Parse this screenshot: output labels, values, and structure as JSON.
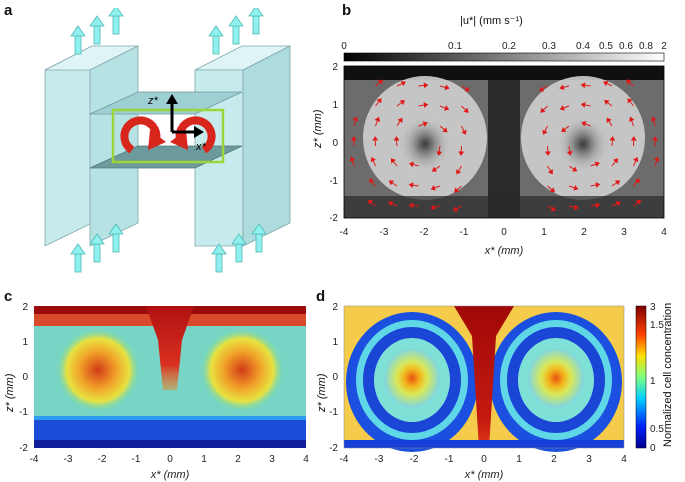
{
  "figure": {
    "panels": {
      "a": {
        "letter": "a",
        "axis_z": "z*",
        "axis_x": "x*"
      },
      "b": {
        "letter": "b",
        "colorbar_title": "|u*| (mm s⁻¹)",
        "colorbar_ticks": [
          "0",
          "0.1",
          "0.2",
          "0.3",
          "0.4",
          "0.5",
          "0.6",
          "0.8",
          "2"
        ],
        "xlabel": "x* (mm)",
        "ylabel": "z* (mm)",
        "xticks": [
          "-4",
          "-3",
          "-2",
          "-1",
          "0",
          "1",
          "2",
          "3",
          "4"
        ],
        "yticks": [
          "2",
          "1",
          "0",
          "-1",
          "-2"
        ]
      },
      "c": {
        "letter": "c",
        "xlabel": "x* (mm)",
        "ylabel": "z* (mm)",
        "xticks": [
          "-4",
          "-3",
          "-2",
          "-1",
          "0",
          "1",
          "2",
          "3",
          "4"
        ],
        "yticks": [
          "2",
          "1",
          "0",
          "-1",
          "-2"
        ]
      },
      "d": {
        "letter": "d",
        "xlabel": "x* (mm)",
        "ylabel": "z* (mm)",
        "xticks": [
          "-4",
          "-3",
          "-2",
          "-1",
          "0",
          "1",
          "2",
          "3",
          "4"
        ],
        "yticks": [
          "2",
          "1",
          "0",
          "-1",
          "-2"
        ],
        "colorbar_label": "Normalized cell concentration",
        "colorbar_ticks": [
          "3",
          "1.5",
          "1",
          "0.5",
          "0"
        ]
      }
    },
    "colors": {
      "arrow_cyan": "#8ff0ee",
      "vortex_red": "#d8261c",
      "frame_green": "#9ad63a",
      "velocity_arrow": "#e01818"
    }
  }
}
